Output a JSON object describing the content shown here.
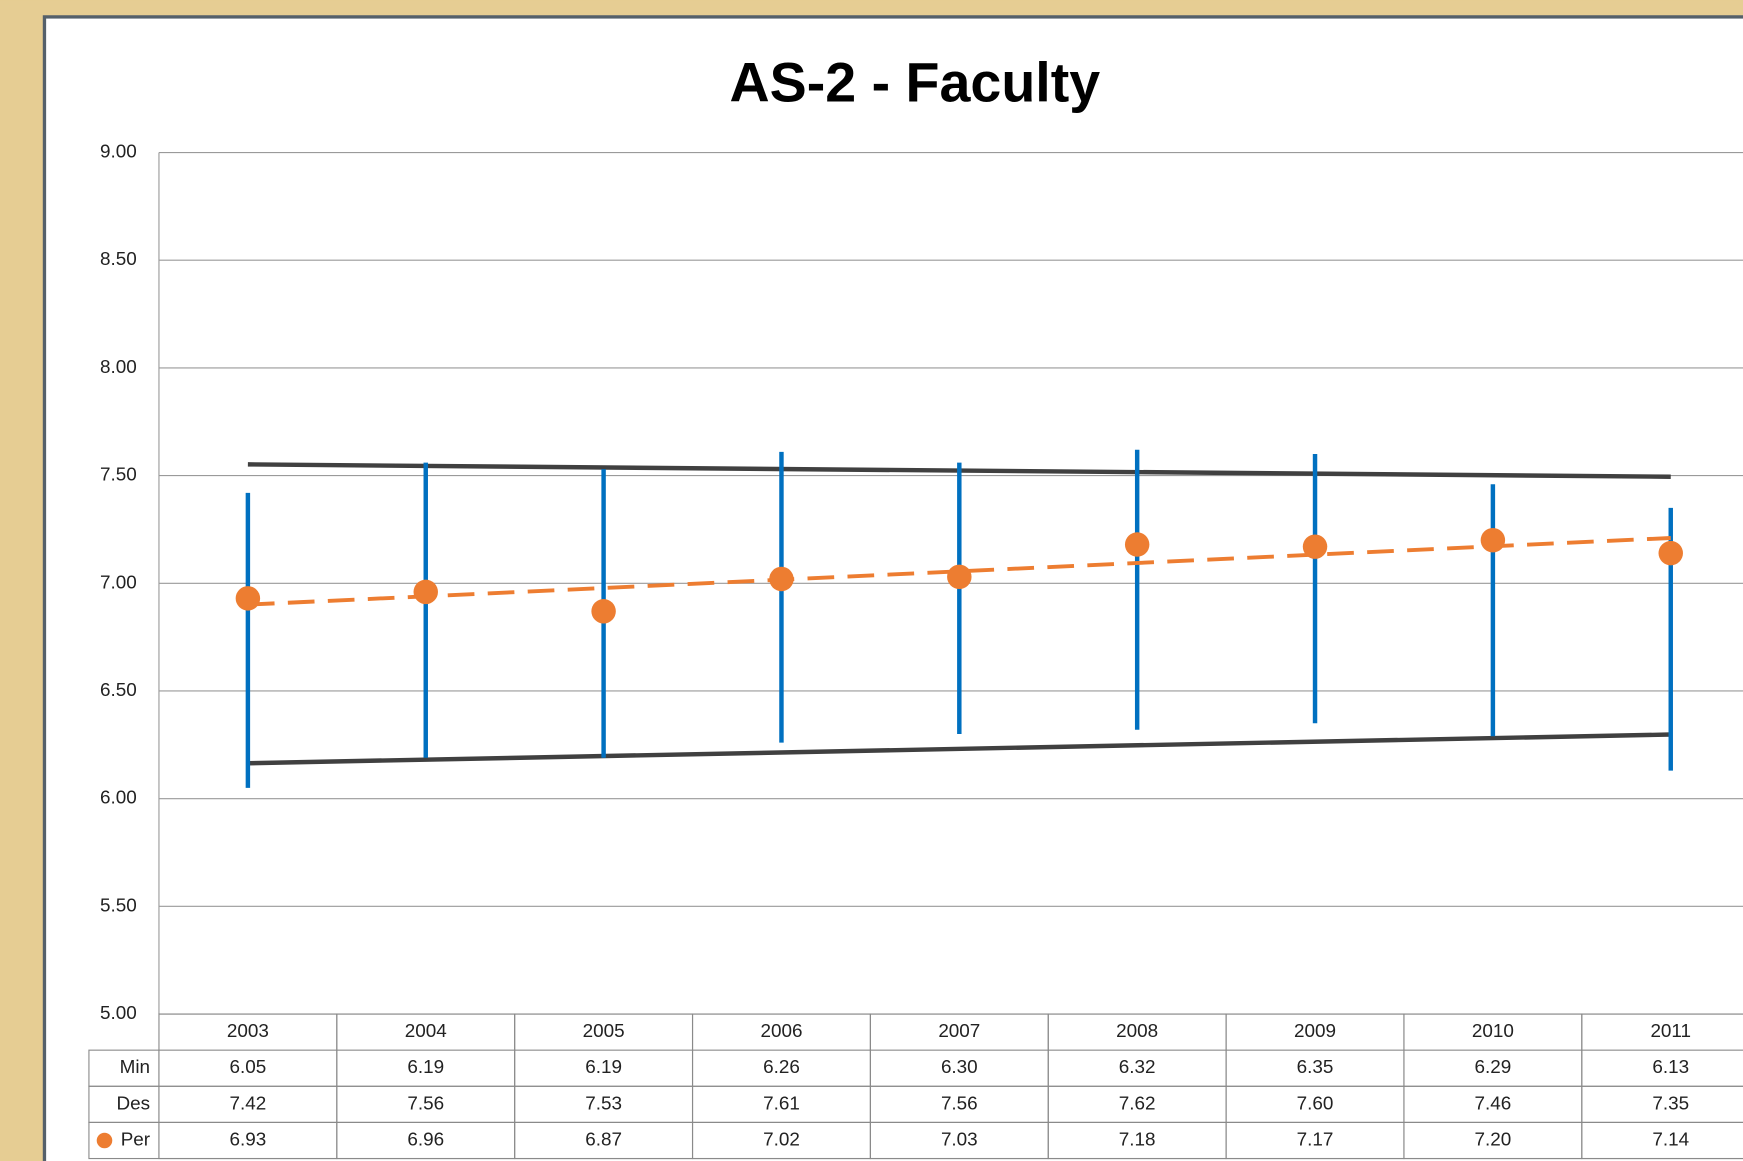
{
  "chart_data": {
    "type": "range-dot",
    "title": "AS-2 - Faculty",
    "categories": [
      "2003",
      "2004",
      "2005",
      "2006",
      "2007",
      "2008",
      "2009",
      "2010",
      "2011"
    ],
    "series": [
      {
        "name": "Min",
        "color": "#0070c0",
        "values": [
          6.05,
          6.19,
          6.19,
          6.26,
          6.3,
          6.32,
          6.35,
          6.29,
          6.13
        ],
        "value_labels": [
          "6.05",
          "6.19",
          "6.19",
          "6.26",
          "6.30",
          "6.32",
          "6.35",
          "6.29",
          "6.13"
        ]
      },
      {
        "name": "Des",
        "color": "#0070c0",
        "values": [
          7.42,
          7.56,
          7.53,
          7.61,
          7.56,
          7.62,
          7.6,
          7.46,
          7.35
        ],
        "value_labels": [
          "7.42",
          "7.56",
          "7.53",
          "7.61",
          "7.56",
          "7.62",
          "7.60",
          "7.46",
          "7.35"
        ]
      },
      {
        "name": "Per",
        "color": "#ed7d31",
        "values": [
          6.93,
          6.96,
          6.87,
          7.02,
          7.03,
          7.18,
          7.17,
          7.2,
          7.14
        ],
        "value_labels": [
          "6.93",
          "6.96",
          "6.87",
          "7.02",
          "7.03",
          "7.18",
          "7.17",
          "7.20",
          "7.14"
        ]
      }
    ],
    "trendline_color": "#404040",
    "ylim": [
      5,
      9
    ],
    "yticks": [
      {
        "value": 5,
        "label": "5.00"
      },
      {
        "value": 5.5,
        "label": "5.50"
      },
      {
        "value": 6,
        "label": "6.00"
      },
      {
        "value": 6.5,
        "label": "6.50"
      },
      {
        "value": 7,
        "label": "7.00"
      },
      {
        "value": 7.5,
        "label": "7.50"
      },
      {
        "value": 8,
        "label": "8.00"
      },
      {
        "value": 8.5,
        "label": "8.50"
      },
      {
        "value": 9,
        "label": "9.00"
      }
    ],
    "grid": true
  }
}
